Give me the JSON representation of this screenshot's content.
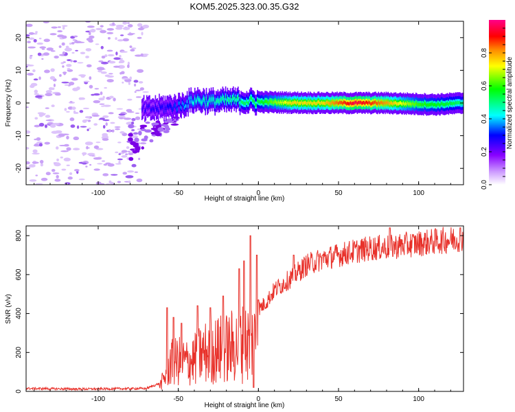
{
  "title": "KOM5.2025.323.00.35.G32",
  "chart_data": [
    {
      "type": "heatmap",
      "name": "spectrogram",
      "xlabel": "Height of straight line (km)",
      "ylabel": "Frequency (Hz)",
      "xlim": [
        -145,
        128
      ],
      "ylim": [
        -25,
        25
      ],
      "xticks": [
        -100,
        -50,
        0,
        50,
        100
      ],
      "yticks": [
        -20,
        -10,
        0,
        10,
        20
      ],
      "colorbar": {
        "label": "Normalized spectral amplitude",
        "range": [
          0,
          1
        ],
        "ticks": [
          "0.0",
          "0.2",
          "0.4",
          "0.6",
          "0.8"
        ],
        "colors": [
          "#ffffff",
          "#cc99ff",
          "#8800ff",
          "#0000ff",
          "#00ffff",
          "#00ff00",
          "#ffff00",
          "#ff8800",
          "#ff0000",
          "#ff0088"
        ]
      },
      "ridge": {
        "description_points": [
          [
            -72,
            -2
          ],
          [
            -60,
            -1.5
          ],
          [
            -50,
            -1
          ],
          [
            -40,
            1
          ],
          [
            -30,
            0.5
          ],
          [
            -15,
            0.8
          ],
          [
            0,
            0.3
          ],
          [
            20,
            0.1
          ],
          [
            50,
            0
          ],
          [
            80,
            0
          ],
          [
            110,
            -0.5
          ],
          [
            128,
            0
          ]
        ],
        "amplitude": [
          [
            -72,
            0.25
          ],
          [
            -55,
            0.3
          ],
          [
            -40,
            0.45
          ],
          [
            -20,
            0.5
          ],
          [
            0,
            0.55
          ],
          [
            20,
            0.75
          ],
          [
            40,
            0.75
          ],
          [
            60,
            0.95
          ],
          [
            80,
            0.8
          ],
          [
            100,
            0.6
          ],
          [
            120,
            0.55
          ],
          [
            128,
            0.5
          ]
        ]
      }
    },
    {
      "type": "line",
      "name": "snr",
      "xlabel": "Height of straight line (km)",
      "ylabel": "SNR (v/v)",
      "xlim": [
        -145,
        128
      ],
      "ylim": [
        0,
        850
      ],
      "xticks": [
        -100,
        -50,
        0,
        50,
        100
      ],
      "yticks": [
        0,
        200,
        400,
        600,
        800
      ],
      "color": "#e8312a",
      "envelope": [
        [
          -145,
          15
        ],
        [
          -110,
          12
        ],
        [
          -70,
          15
        ],
        [
          -62,
          40
        ],
        [
          -58,
          120
        ],
        [
          -55,
          220
        ],
        [
          -50,
          240
        ],
        [
          -45,
          230
        ],
        [
          -40,
          250
        ],
        [
          -35,
          300
        ],
        [
          -30,
          310
        ],
        [
          -25,
          330
        ],
        [
          -20,
          340
        ],
        [
          -15,
          360
        ],
        [
          -10,
          380
        ],
        [
          -5,
          390
        ],
        [
          0,
          420
        ],
        [
          5,
          460
        ],
        [
          10,
          520
        ],
        [
          20,
          580
        ],
        [
          30,
          650
        ],
        [
          40,
          680
        ],
        [
          50,
          700
        ],
        [
          60,
          720
        ],
        [
          70,
          735
        ],
        [
          80,
          740
        ],
        [
          90,
          750
        ],
        [
          100,
          760
        ],
        [
          110,
          770
        ],
        [
          120,
          780
        ],
        [
          128,
          790
        ]
      ],
      "spikes": [
        [
          -57,
          430
        ],
        [
          -53,
          380
        ],
        [
          -48,
          350
        ],
        [
          -38,
          440
        ],
        [
          -30,
          430
        ],
        [
          -22,
          490
        ],
        [
          -12,
          630
        ],
        [
          -9,
          670
        ],
        [
          -5,
          800
        ],
        [
          -3,
          20
        ],
        [
          -1,
          700
        ],
        [
          0,
          470
        ],
        [
          22,
          700
        ],
        [
          40,
          700
        ],
        [
          82,
          840
        ],
        [
          126,
          840
        ]
      ]
    }
  ]
}
